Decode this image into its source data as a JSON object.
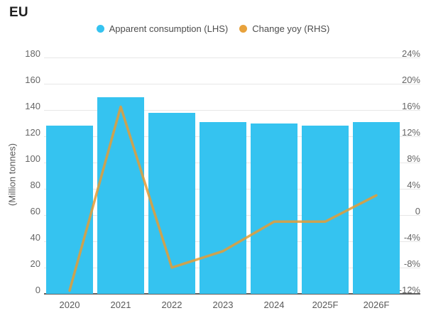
{
  "title": "EU",
  "legend": {
    "items": [
      {
        "label": "Apparent consumption (LHS)",
        "marker": "circle",
        "color": "#35c3f0"
      },
      {
        "label": "Change yoy (RHS)",
        "marker": "circle",
        "color": "#e8a23c"
      }
    ]
  },
  "axes": {
    "left": {
      "title": "(Million tonnes)",
      "ticks": [
        "180",
        "160",
        "140",
        "120",
        "100",
        "80",
        "60",
        "40",
        "20",
        "0"
      ]
    },
    "right": {
      "ticks": [
        "24%",
        "20%",
        "16%",
        "12%",
        "8%",
        "4%",
        "0",
        "-4%",
        "-8%",
        "-12%"
      ]
    },
    "x": {
      "categories": [
        "2020",
        "2021",
        "2022",
        "2023",
        "2024",
        "2025F",
        "2026F"
      ]
    }
  },
  "colors": {
    "bar": "#35c3f0",
    "line": "#e8a23c",
    "grid": "#e7e7e7",
    "axis_line": "#5f5f5f",
    "text": "#595959"
  },
  "chart_data": {
    "type": "bar",
    "title": "EU",
    "categories": [
      "2020",
      "2021",
      "2022",
      "2023",
      "2024",
      "2025F",
      "2026F"
    ],
    "series": [
      {
        "name": "Apparent consumption (LHS)",
        "type": "bar",
        "axis": "left",
        "unit": "Million tonnes",
        "color": "#35c3f0",
        "values": [
          128,
          150,
          138,
          131,
          130,
          128,
          131
        ]
      },
      {
        "name": "Change yoy (RHS)",
        "type": "line",
        "axis": "right",
        "unit": "%",
        "color": "#e8a23c",
        "values": [
          -11.5,
          16.5,
          -8,
          -5.5,
          -1,
          -1,
          3
        ]
      }
    ],
    "ylabel_left": "(Million tonnes)",
    "ylabel_right": "",
    "left_range": [
      0,
      180
    ],
    "right_range": [
      -12,
      24
    ],
    "grid": true,
    "legend_position": "top"
  }
}
